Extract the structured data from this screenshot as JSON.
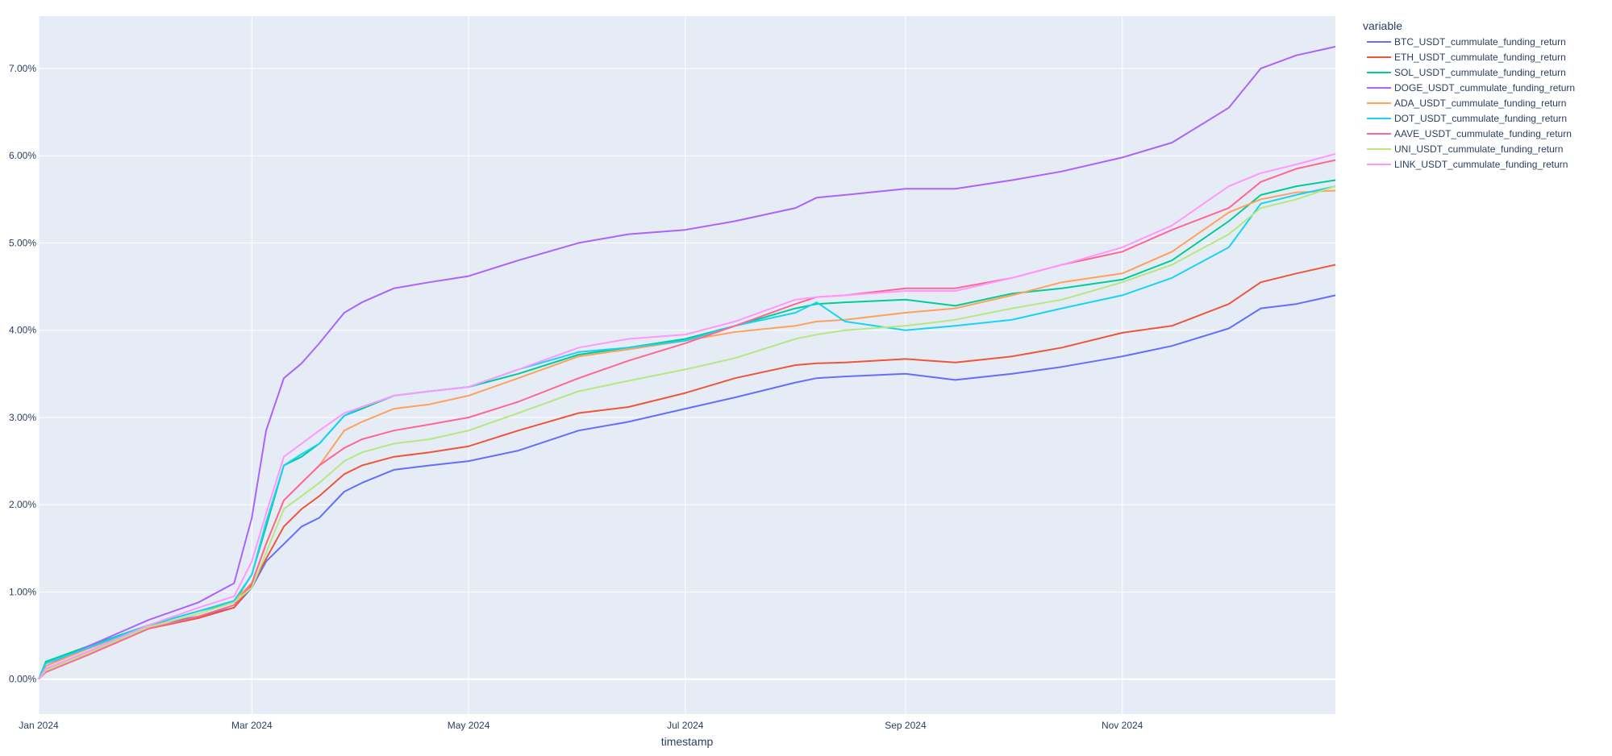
{
  "chart_data": {
    "type": "line",
    "title": "",
    "xlabel": "timestamp",
    "ylabel": "",
    "legend_title": "variable",
    "legend_position": "right",
    "grid": true,
    "x_range": [
      "2024-01-01",
      "2024-12-31"
    ],
    "ylim": [
      -0.4,
      7.6
    ],
    "x_ticks": [
      {
        "date": "2024-01-01",
        "label": "Jan 2024"
      },
      {
        "date": "2024-03-01",
        "label": "Mar 2024"
      },
      {
        "date": "2024-05-01",
        "label": "May 2024"
      },
      {
        "date": "2024-07-01",
        "label": "Jul 2024"
      },
      {
        "date": "2024-09-01",
        "label": "Sep 2024"
      },
      {
        "date": "2024-11-01",
        "label": "Nov 2024"
      }
    ],
    "y_ticks": [
      {
        "value": 0,
        "label": "0.00%"
      },
      {
        "value": 1,
        "label": "1.00%"
      },
      {
        "value": 2,
        "label": "2.00%"
      },
      {
        "value": 3,
        "label": "3.00%"
      },
      {
        "value": 4,
        "label": "4.00%"
      },
      {
        "value": 5,
        "label": "5.00%"
      },
      {
        "value": 6,
        "label": "6.00%"
      },
      {
        "value": 7,
        "label": "7.00%"
      }
    ],
    "x": [
      "2024-01-01",
      "2024-01-03",
      "2024-01-15",
      "2024-02-01",
      "2024-02-15",
      "2024-02-25",
      "2024-03-01",
      "2024-03-05",
      "2024-03-10",
      "2024-03-15",
      "2024-03-20",
      "2024-03-27",
      "2024-04-01",
      "2024-04-10",
      "2024-04-20",
      "2024-05-01",
      "2024-05-15",
      "2024-06-01",
      "2024-06-15",
      "2024-07-01",
      "2024-07-15",
      "2024-08-01",
      "2024-08-07",
      "2024-08-15",
      "2024-09-01",
      "2024-09-15",
      "2024-10-01",
      "2024-10-15",
      "2024-11-01",
      "2024-11-15",
      "2024-12-01",
      "2024-12-10",
      "2024-12-20",
      "2024-12-31"
    ],
    "series": [
      {
        "name": "BTC_USDT_cummulate_funding_return",
        "color": "#636efa",
        "values": [
          0.0,
          0.12,
          0.32,
          0.62,
          0.72,
          0.82,
          1.05,
          1.35,
          1.55,
          1.75,
          1.85,
          2.15,
          2.25,
          2.4,
          2.45,
          2.5,
          2.62,
          2.85,
          2.95,
          3.1,
          3.23,
          3.4,
          3.45,
          3.47,
          3.5,
          3.43,
          3.5,
          3.58,
          3.7,
          3.82,
          4.02,
          4.25,
          4.3,
          4.4
        ]
      },
      {
        "name": "ETH_USDT_cummulate_funding_return",
        "color": "#EF553B",
        "values": [
          0.0,
          0.1,
          0.3,
          0.58,
          0.7,
          0.82,
          1.07,
          1.38,
          1.75,
          1.95,
          2.1,
          2.35,
          2.45,
          2.55,
          2.6,
          2.67,
          2.85,
          3.05,
          3.12,
          3.28,
          3.45,
          3.6,
          3.62,
          3.63,
          3.67,
          3.63,
          3.7,
          3.8,
          3.97,
          4.05,
          4.3,
          4.55,
          4.65,
          4.75
        ]
      },
      {
        "name": "SOL_USDT_cummulate_funding_return",
        "color": "#00cc96",
        "values": [
          0.0,
          0.2,
          0.38,
          0.62,
          0.78,
          0.88,
          1.2,
          1.75,
          2.45,
          2.55,
          2.7,
          3.02,
          3.1,
          3.25,
          3.3,
          3.35,
          3.5,
          3.72,
          3.8,
          3.9,
          4.05,
          4.25,
          4.3,
          4.32,
          4.35,
          4.28,
          4.42,
          4.48,
          4.58,
          4.8,
          5.25,
          5.55,
          5.65,
          5.72
        ]
      },
      {
        "name": "DOGE_USDT_cummulate_funding_return",
        "color": "#ab63fa",
        "values": [
          0.0,
          0.15,
          0.38,
          0.68,
          0.88,
          1.1,
          1.85,
          2.85,
          3.45,
          3.62,
          3.85,
          4.2,
          4.32,
          4.48,
          4.55,
          4.62,
          4.8,
          5.0,
          5.1,
          5.15,
          5.25,
          5.4,
          5.52,
          5.55,
          5.62,
          5.62,
          5.72,
          5.82,
          5.98,
          6.15,
          6.55,
          7.0,
          7.15,
          7.25
        ]
      },
      {
        "name": "ADA_USDT_cummulate_funding_return",
        "color": "#FFA15A",
        "values": [
          0.0,
          0.15,
          0.35,
          0.62,
          0.78,
          0.9,
          1.1,
          1.55,
          2.05,
          2.25,
          2.45,
          2.85,
          2.95,
          3.1,
          3.15,
          3.25,
          3.45,
          3.7,
          3.78,
          3.88,
          3.98,
          4.05,
          4.1,
          4.12,
          4.2,
          4.25,
          4.4,
          4.55,
          4.65,
          4.9,
          5.35,
          5.5,
          5.58,
          5.6
        ]
      },
      {
        "name": "DOT_USDT_cummulate_funding_return",
        "color": "#19d3f3",
        "values": [
          0.0,
          0.18,
          0.36,
          0.62,
          0.78,
          0.9,
          1.2,
          1.8,
          2.45,
          2.58,
          2.7,
          3.02,
          3.12,
          3.25,
          3.3,
          3.35,
          3.55,
          3.75,
          3.8,
          3.88,
          4.05,
          4.2,
          4.32,
          4.1,
          4.0,
          4.05,
          4.12,
          4.25,
          4.4,
          4.6,
          4.95,
          5.45,
          5.55,
          5.65
        ]
      },
      {
        "name": "AAVE_USDT_cummulate_funding_return",
        "color": "#FF6692",
        "values": [
          0.0,
          0.08,
          0.28,
          0.58,
          0.72,
          0.85,
          1.1,
          1.55,
          2.05,
          2.25,
          2.45,
          2.65,
          2.75,
          2.85,
          2.92,
          3.0,
          3.18,
          3.45,
          3.65,
          3.85,
          4.05,
          4.3,
          4.38,
          4.4,
          4.48,
          4.48,
          4.6,
          4.75,
          4.9,
          5.15,
          5.4,
          5.7,
          5.85,
          5.95
        ]
      },
      {
        "name": "UNI_USDT_cummulate_funding_return",
        "color": "#B6E880",
        "values": [
          0.0,
          0.1,
          0.3,
          0.6,
          0.75,
          0.88,
          1.05,
          1.45,
          1.95,
          2.1,
          2.25,
          2.5,
          2.6,
          2.7,
          2.75,
          2.85,
          3.05,
          3.3,
          3.42,
          3.55,
          3.68,
          3.9,
          3.95,
          4.0,
          4.05,
          4.12,
          4.25,
          4.35,
          4.55,
          4.75,
          5.1,
          5.4,
          5.5,
          5.65
        ]
      },
      {
        "name": "LINK_USDT_cummulate_funding_return",
        "color": "#FF97FF",
        "values": [
          0.0,
          0.12,
          0.32,
          0.62,
          0.82,
          0.95,
          1.35,
          1.9,
          2.55,
          2.7,
          2.85,
          3.05,
          3.12,
          3.25,
          3.3,
          3.35,
          3.55,
          3.8,
          3.9,
          3.95,
          4.1,
          4.35,
          4.38,
          4.4,
          4.45,
          4.45,
          4.6,
          4.75,
          4.95,
          5.2,
          5.65,
          5.8,
          5.9,
          6.02
        ]
      }
    ]
  }
}
